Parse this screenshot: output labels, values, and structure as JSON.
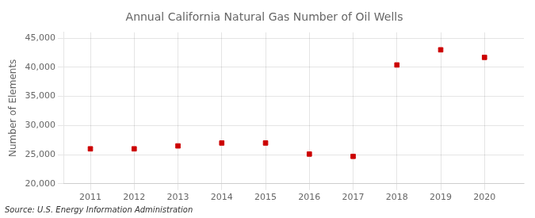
{
  "chart_data": {
    "type": "scatter",
    "title": "Annual California Natural Gas Number of Oil Wells",
    "ylabel": "Number of Elements",
    "annotation": "Source: U.S. Energy Information Administration",
    "x": [
      2011,
      2012,
      2013,
      2014,
      2015,
      2016,
      2017,
      2018,
      2019,
      2020
    ],
    "values": [
      26000,
      26000,
      26500,
      27000,
      27000,
      25100,
      24700,
      40400,
      43000,
      41700
    ],
    "color": "#cc0000",
    "marker": "square",
    "xlim": [
      2010.4,
      2020.9
    ],
    "xticks": [
      2011,
      2012,
      2013,
      2014,
      2015,
      2016,
      2017,
      2018,
      2019,
      2020
    ],
    "ylim": [
      20000,
      46000
    ],
    "yticks": [
      {
        "value": 20000,
        "label": "20,000"
      },
      {
        "value": 25000,
        "label": "25,000"
      },
      {
        "value": 30000,
        "label": "30,000"
      },
      {
        "value": 35000,
        "label": "35,000"
      },
      {
        "value": 40000,
        "label": "40,000"
      },
      {
        "value": 45000,
        "label": "45,000"
      }
    ],
    "grid": true
  }
}
